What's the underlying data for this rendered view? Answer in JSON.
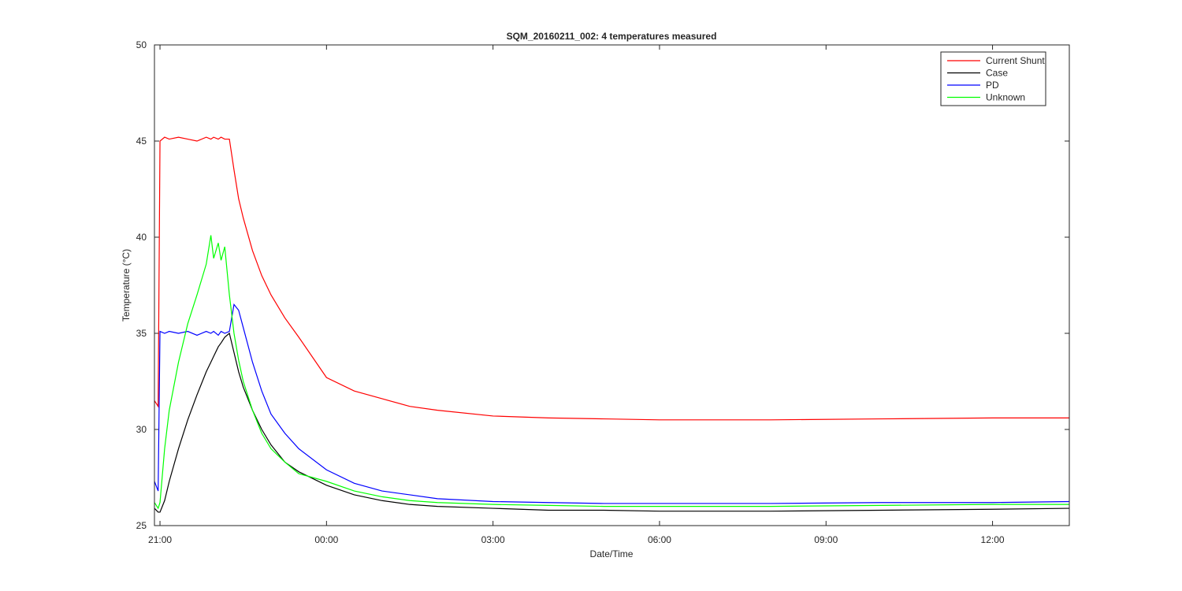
{
  "chart_data": {
    "type": "line",
    "title": "SQM_20160211_002: 4 temperatures measured",
    "x_label": "Date/Time",
    "y_label": "Temperature (°C)",
    "x": [
      "20:54",
      "20:58",
      "21:00",
      "21:05",
      "21:10",
      "21:20",
      "21:30",
      "21:40",
      "21:50",
      "21:55",
      "21:58",
      "22:03",
      "22:06",
      "22:10",
      "22:15",
      "22:20",
      "22:25",
      "22:30",
      "22:40",
      "22:50",
      "23:00",
      "23:15",
      "23:30",
      "00:00",
      "00:30",
      "01:00",
      "01:30",
      "02:00",
      "03:00",
      "04:00",
      "05:00",
      "06:00",
      "08:00",
      "10:00",
      "12:00",
      "13:23"
    ],
    "series": [
      {
        "name": "Current Shunt",
        "color": "#ff0000",
        "values": [
          31.5,
          31.2,
          45.0,
          45.2,
          45.1,
          45.2,
          45.1,
          45.0,
          45.2,
          45.1,
          45.2,
          45.1,
          45.2,
          45.1,
          45.1,
          43.5,
          42.0,
          41.0,
          39.3,
          38.0,
          37.0,
          35.8,
          34.8,
          32.7,
          32.0,
          31.6,
          31.2,
          31.0,
          30.7,
          30.6,
          30.55,
          30.5,
          30.5,
          30.55,
          30.6,
          30.6
        ]
      },
      {
        "name": "Case",
        "color": "#000000",
        "values": [
          25.9,
          25.7,
          25.7,
          26.3,
          27.3,
          29.0,
          30.5,
          31.8,
          33.0,
          33.5,
          33.8,
          34.3,
          34.5,
          34.8,
          35.0,
          34.0,
          33.0,
          32.2,
          31.0,
          30.0,
          29.2,
          28.3,
          27.8,
          27.1,
          26.6,
          26.3,
          26.1,
          26.0,
          25.9,
          25.8,
          25.8,
          25.75,
          25.75,
          25.8,
          25.85,
          25.9
        ]
      },
      {
        "name": "PD",
        "color": "#0000ff",
        "values": [
          27.3,
          26.8,
          35.1,
          35.0,
          35.1,
          35.0,
          35.1,
          34.9,
          35.1,
          35.0,
          35.1,
          34.9,
          35.1,
          35.0,
          35.1,
          36.5,
          36.2,
          35.3,
          33.5,
          32.0,
          30.8,
          29.8,
          29.0,
          27.9,
          27.2,
          26.8,
          26.6,
          26.4,
          26.25,
          26.2,
          26.15,
          26.15,
          26.15,
          26.2,
          26.2,
          26.25
        ]
      },
      {
        "name": "Unknown",
        "color": "#00ff00",
        "values": [
          26.2,
          25.9,
          26.2,
          29.0,
          31.0,
          33.5,
          35.5,
          37.0,
          38.6,
          40.1,
          38.9,
          39.7,
          38.8,
          39.5,
          37.0,
          35.0,
          33.6,
          32.5,
          31.0,
          29.8,
          29.0,
          28.3,
          27.7,
          27.3,
          26.8,
          26.5,
          26.3,
          26.2,
          26.1,
          26.05,
          26.0,
          26.0,
          26.0,
          26.05,
          26.1,
          26.1
        ]
      }
    ],
    "xlim": [
      "20:54",
      "13:23"
    ],
    "xticks": [
      "21:00",
      "00:00",
      "03:00",
      "06:00",
      "09:00",
      "12:00"
    ],
    "ylim": [
      25,
      50
    ],
    "yticks": [
      25,
      30,
      35,
      40,
      45,
      50
    ],
    "grid": false,
    "legend": "northeast"
  }
}
